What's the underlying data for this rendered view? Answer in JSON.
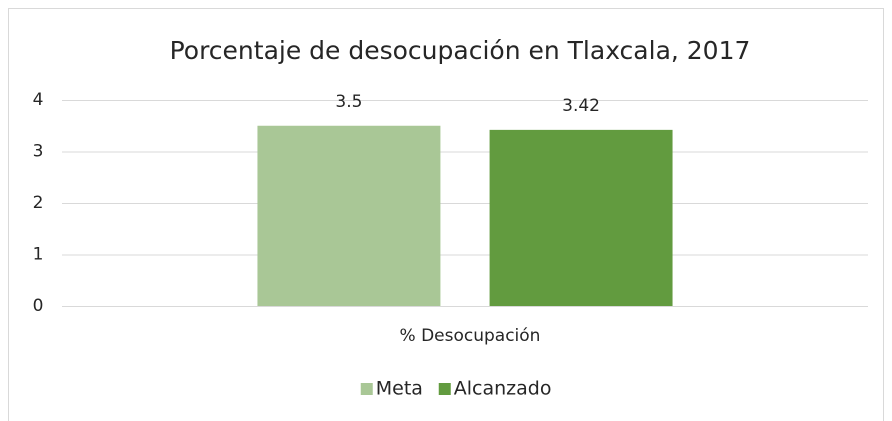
{
  "chart_data": {
    "type": "bar",
    "title": "Porcentaje de desocupación en Tlaxcala, 2017",
    "categories": [
      "% Desocupación"
    ],
    "series": [
      {
        "name": "Meta",
        "color": "#a9c796",
        "values": [
          3.5
        ]
      },
      {
        "name": "Alcanzado",
        "color": "#629b3f",
        "values": [
          3.42
        ]
      }
    ],
    "ylim": [
      0,
      4
    ],
    "yticks": [
      0,
      1,
      2,
      3,
      4
    ],
    "grid": true,
    "legend": "bottom"
  }
}
